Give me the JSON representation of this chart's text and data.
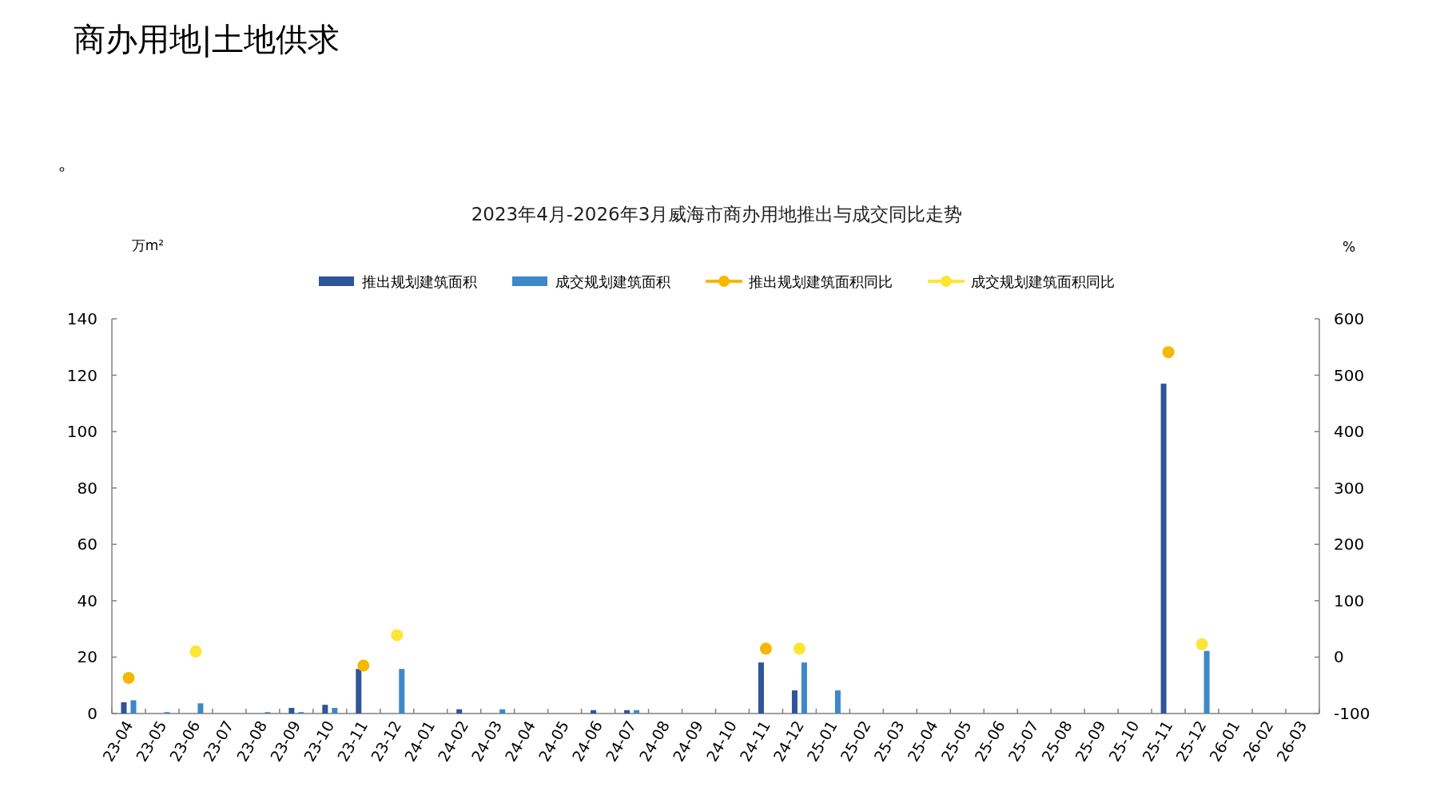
{
  "chart_data": {
    "type": "bar",
    "title": "2023年4月-2026年3月威海市商办用地推出与成交同比走势",
    "annotations": [
      "商办用地|土地供求",
      "。"
    ],
    "ylabel": "万m²",
    "y2label": "%",
    "categories": [
      "23-04",
      "23-05",
      "23-06",
      "23-07",
      "23-08",
      "23-09",
      "23-10",
      "23-11",
      "23-12",
      "24-01",
      "24-02",
      "24-03",
      "24-04",
      "24-05",
      "24-06",
      "24-07",
      "24-08",
      "24-09",
      "24-10",
      "24-11",
      "24-12",
      "25-01",
      "25-02",
      "25-03",
      "25-04",
      "25-05",
      "25-06",
      "25-07",
      "25-08",
      "25-09",
      "25-10",
      "25-11",
      "25-12",
      "26-01",
      "26-02",
      "26-03"
    ],
    "series": [
      {
        "name": "推出规划建筑面积",
        "color": "#2e5597",
        "values": [
          4.0,
          0,
          0,
          0,
          0,
          2.0,
          3.1,
          15.8,
          0,
          0,
          1.5,
          0,
          0,
          0,
          1.2,
          1.2,
          0,
          0,
          0,
          18.1,
          8.2,
          0,
          0,
          0,
          0,
          0,
          0,
          0,
          0,
          0,
          0,
          117,
          0,
          0,
          0,
          0
        ]
      },
      {
        "name": "成交规划建筑面积",
        "color": "#3c88c8",
        "values": [
          4.7,
          0.5,
          3.6,
          0,
          0.5,
          0.5,
          2.0,
          0,
          15.8,
          0,
          0,
          1.5,
          0,
          0,
          0,
          1.2,
          0,
          0,
          0,
          0,
          18.1,
          8.2,
          0,
          0,
          0,
          0,
          0,
          0,
          0,
          0,
          0,
          0,
          22.2,
          0,
          0,
          0
        ]
      },
      {
        "name": "推出规划建筑面积同比",
        "type": "scatter",
        "axis": "y2",
        "color": "#f5b800",
        "values": [
          -37,
          null,
          null,
          null,
          null,
          null,
          null,
          -15,
          null,
          null,
          null,
          null,
          null,
          null,
          null,
          null,
          null,
          null,
          null,
          15,
          null,
          null,
          null,
          null,
          null,
          null,
          null,
          null,
          null,
          null,
          null,
          541,
          null,
          null,
          null,
          null
        ]
      },
      {
        "name": "成交规划建筑面积同比",
        "type": "scatter",
        "axis": "y2",
        "color": "#fce535",
        "values": [
          null,
          null,
          10,
          null,
          null,
          null,
          null,
          null,
          39,
          null,
          null,
          null,
          null,
          null,
          null,
          null,
          null,
          null,
          null,
          null,
          15,
          null,
          null,
          null,
          null,
          null,
          null,
          null,
          null,
          null,
          null,
          null,
          23,
          null,
          null,
          null
        ]
      }
    ],
    "ylim": [
      0,
      140
    ],
    "yticks": [
      0,
      20,
      40,
      60,
      80,
      100,
      120,
      140
    ],
    "y2lim": [
      -100,
      600
    ],
    "y2ticks": [
      -100,
      0,
      100,
      200,
      300,
      400,
      500,
      600
    ],
    "legend": "top",
    "marker": "circle",
    "line_style": "solid"
  }
}
